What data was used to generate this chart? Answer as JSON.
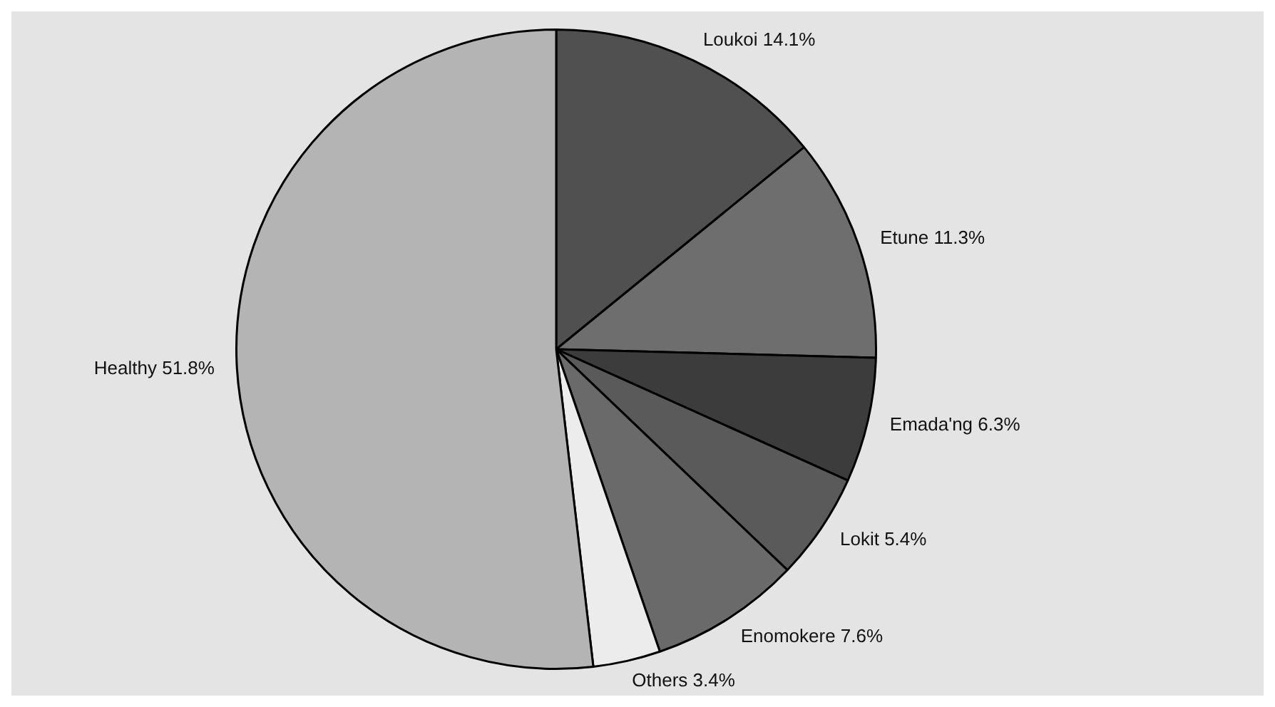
{
  "chart_data": {
    "type": "pie",
    "categories": [
      "Loukoi",
      "Etune",
      "Emada'ng",
      "Lokit",
      "Enomokere",
      "Others",
      "Healthy"
    ],
    "values": [
      14.1,
      11.3,
      6.3,
      5.4,
      7.6,
      3.4,
      51.8
    ],
    "colors": [
      "#505050",
      "#6e6e6e",
      "#3c3c3c",
      "#5a5a5a",
      "#6a6a6a",
      "#ececec",
      "#b4b4b4"
    ],
    "value_labels": [
      "14.1%",
      "11.3%",
      "6.3%",
      "5.4%",
      "7.6%",
      "3.4%",
      "51.8%"
    ],
    "legend": false
  }
}
